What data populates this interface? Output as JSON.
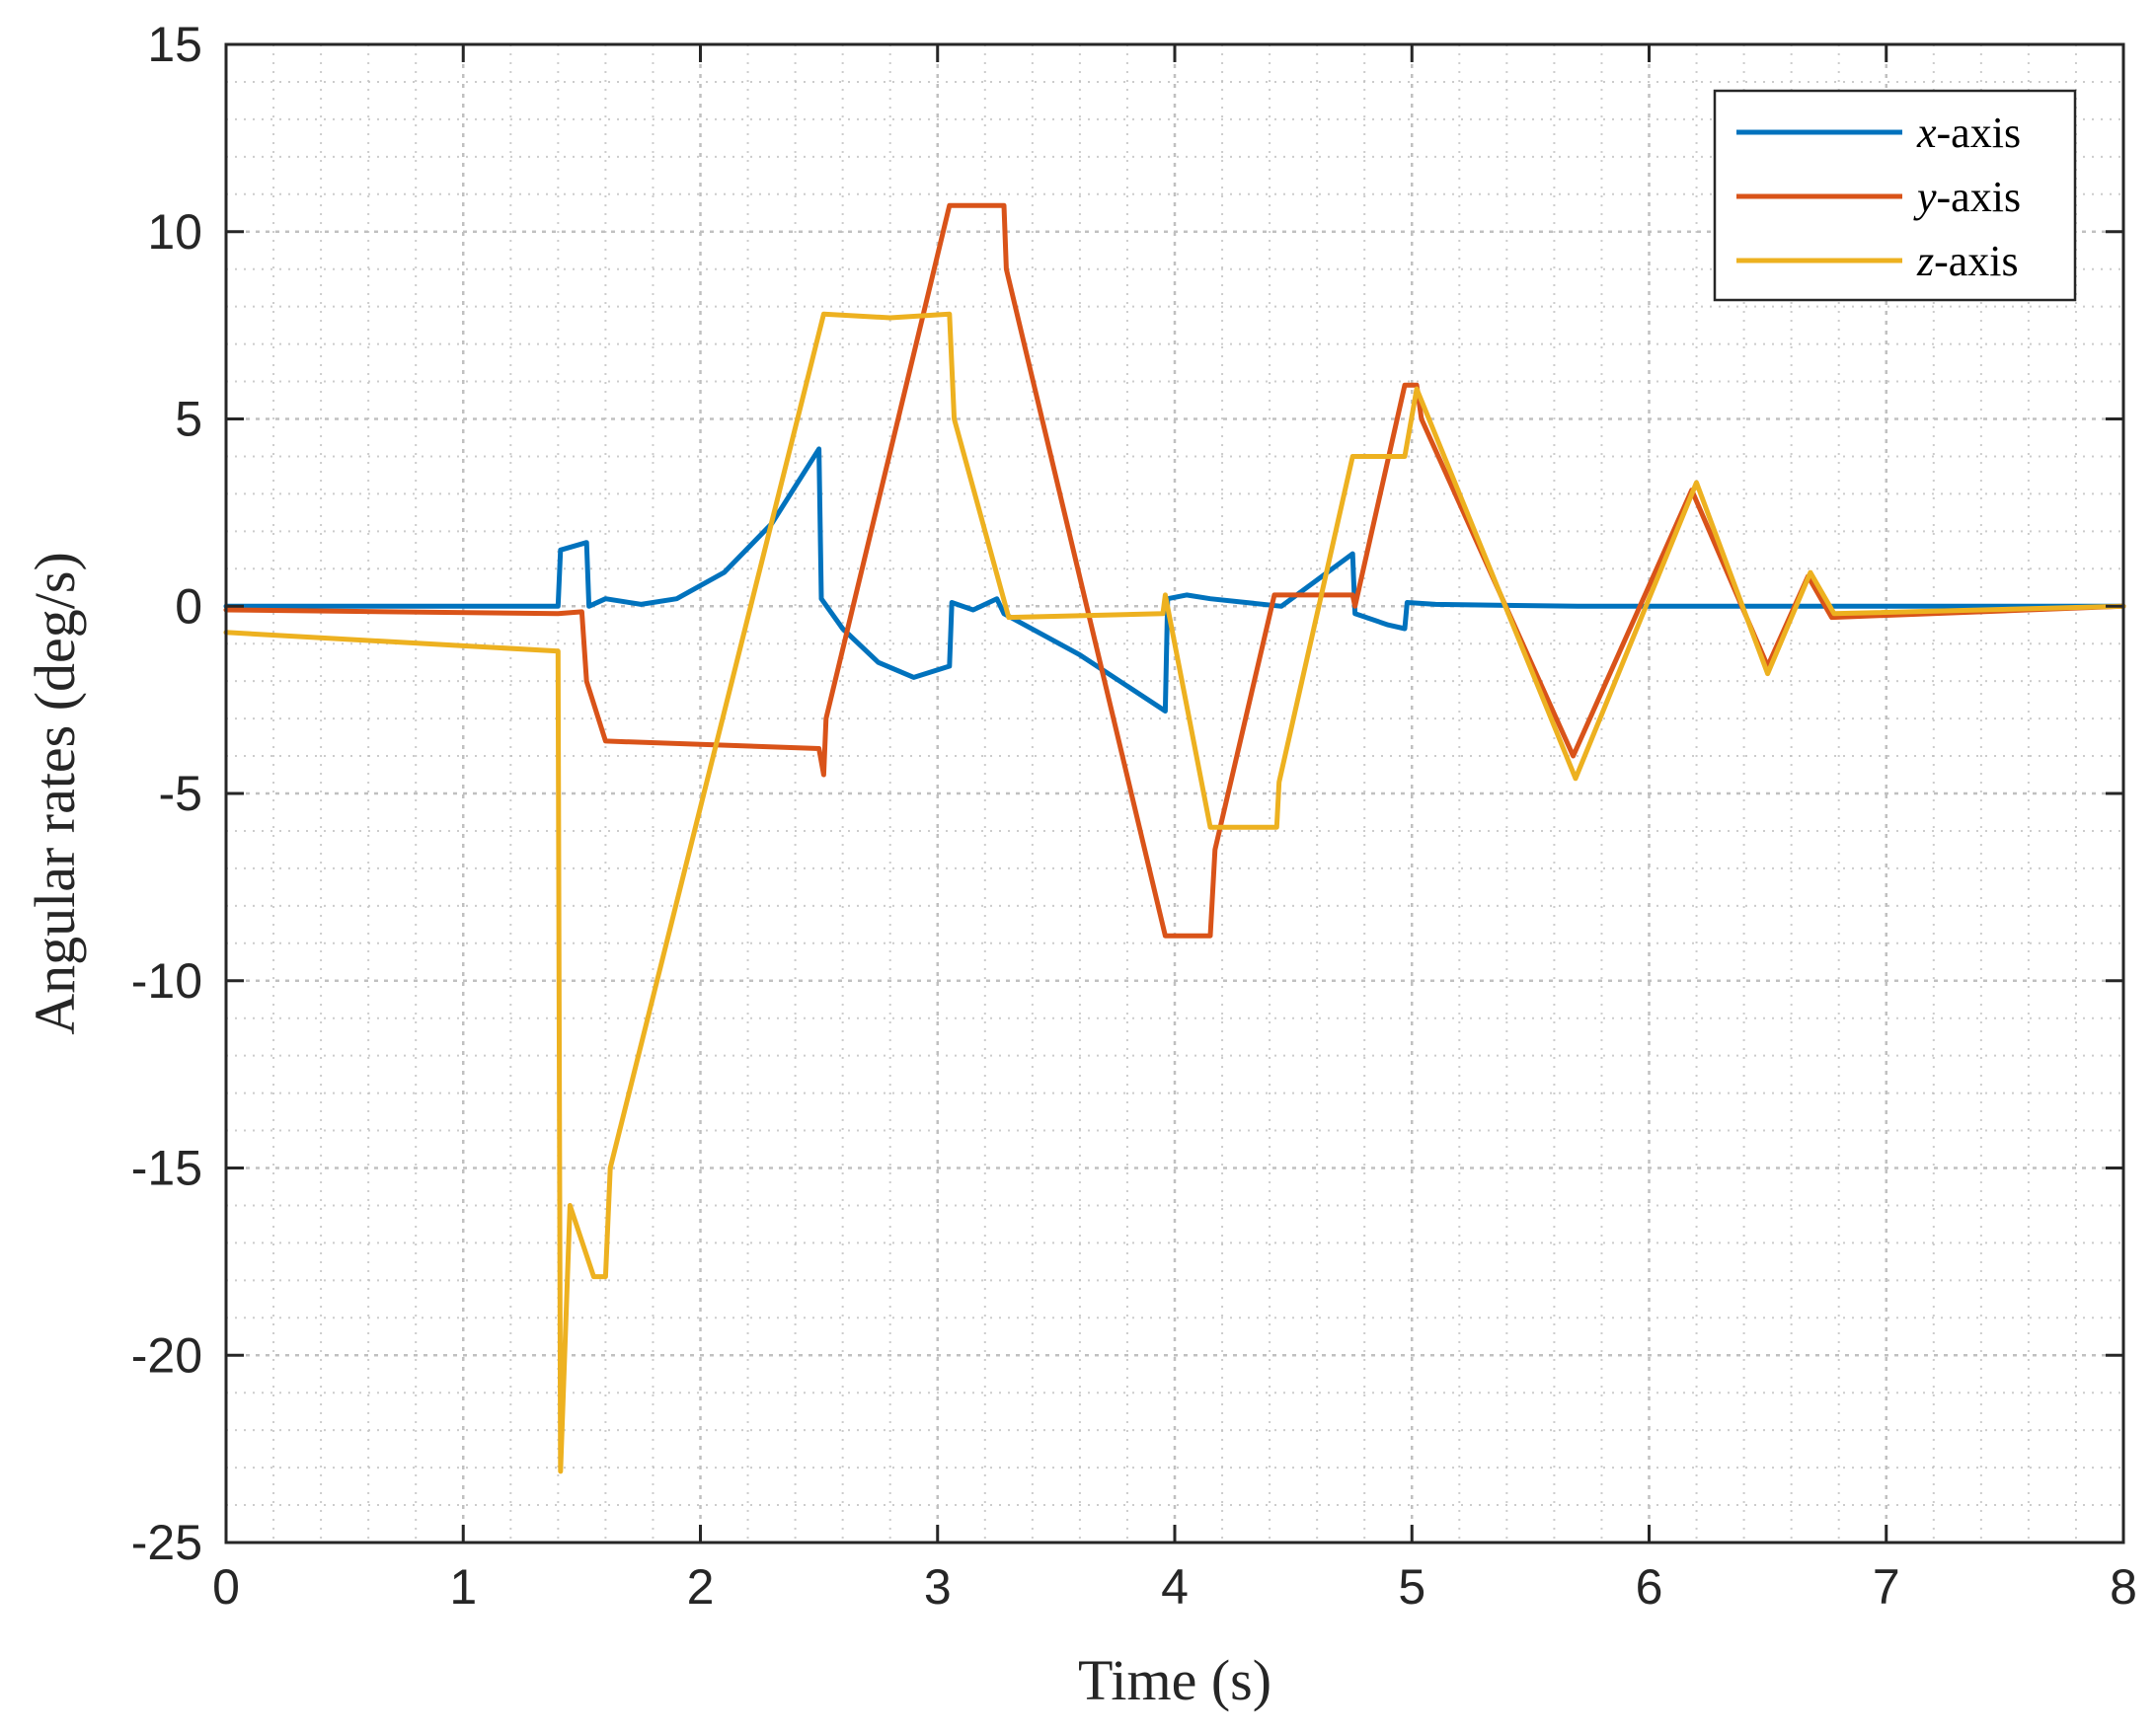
{
  "chart_data": {
    "type": "line",
    "title": "",
    "xlabel": "Time (s)",
    "ylabel": "Angular rates (deg/s)",
    "xlim": [
      0,
      8
    ],
    "ylim": [
      -25,
      15
    ],
    "xticks": [
      0,
      1,
      2,
      3,
      4,
      5,
      6,
      7,
      8
    ],
    "yticks": [
      -25,
      -20,
      -15,
      -10,
      -5,
      0,
      5,
      10,
      15
    ],
    "grid": "on (major and minor, dotted)",
    "legend_position": "top-right",
    "legend": [
      {
        "var": "x",
        "suffix": "-axis"
      },
      {
        "var": "y",
        "suffix": "-axis"
      },
      {
        "var": "z",
        "suffix": "-axis"
      }
    ],
    "colors": {
      "x": "#0072BD",
      "y": "#D95319",
      "z": "#EDB120",
      "axes": "#262626",
      "grid": "#C0C0C0"
    },
    "series": [
      {
        "name": "x-axis",
        "color": "#0072BD",
        "points": [
          [
            0,
            0
          ],
          [
            1.4,
            0
          ],
          [
            1.41,
            1.5
          ],
          [
            1.52,
            1.7
          ],
          [
            1.53,
            0
          ],
          [
            1.6,
            0.2
          ],
          [
            1.75,
            0.05
          ],
          [
            1.9,
            0.2
          ],
          [
            2.1,
            0.9
          ],
          [
            2.3,
            2.2
          ],
          [
            2.5,
            4.2
          ],
          [
            2.51,
            0.2
          ],
          [
            2.6,
            -0.6
          ],
          [
            2.75,
            -1.5
          ],
          [
            2.9,
            -1.9
          ],
          [
            3.05,
            -1.6
          ],
          [
            3.06,
            0.1
          ],
          [
            3.15,
            -0.1
          ],
          [
            3.25,
            0.2
          ],
          [
            3.28,
            -0.2
          ],
          [
            3.6,
            -1.3
          ],
          [
            3.96,
            -2.8
          ],
          [
            3.97,
            0.2
          ],
          [
            4.05,
            0.3
          ],
          [
            4.15,
            0.2
          ],
          [
            4.3,
            0.1
          ],
          [
            4.45,
            0.0
          ],
          [
            4.6,
            0.7
          ],
          [
            4.75,
            1.4
          ],
          [
            4.76,
            -0.2
          ],
          [
            4.9,
            -0.5
          ],
          [
            4.97,
            -0.6
          ],
          [
            4.98,
            0.1
          ],
          [
            5.1,
            0.05
          ],
          [
            5.7,
            0.0
          ],
          [
            6.5,
            0.0
          ],
          [
            6.8,
            0.0
          ],
          [
            7.0,
            0.0
          ],
          [
            8,
            0
          ]
        ]
      },
      {
        "name": "y-axis",
        "color": "#D95319",
        "points": [
          [
            0,
            -0.1
          ],
          [
            1.4,
            -0.2
          ],
          [
            1.5,
            -0.15
          ],
          [
            1.52,
            -2.0
          ],
          [
            1.6,
            -3.6
          ],
          [
            2.5,
            -3.8
          ],
          [
            2.52,
            -4.5
          ],
          [
            2.53,
            -3.0
          ],
          [
            3.05,
            10.7
          ],
          [
            3.28,
            10.7
          ],
          [
            3.29,
            9.0
          ],
          [
            3.96,
            -8.8
          ],
          [
            4.15,
            -8.8
          ],
          [
            4.17,
            -6.5
          ],
          [
            4.42,
            0.3
          ],
          [
            4.75,
            0.3
          ],
          [
            4.76,
            0.0
          ],
          [
            4.97,
            5.9
          ],
          [
            5.02,
            5.9
          ],
          [
            5.04,
            5.0
          ],
          [
            5.68,
            -4.0
          ],
          [
            6.18,
            3.1
          ],
          [
            6.5,
            -1.6
          ],
          [
            6.67,
            0.8
          ],
          [
            6.77,
            -0.3
          ],
          [
            8,
            0
          ]
        ]
      },
      {
        "name": "z-axis",
        "color": "#EDB120",
        "points": [
          [
            0,
            -0.7
          ],
          [
            1.4,
            -1.2
          ],
          [
            1.41,
            -23.1
          ],
          [
            1.45,
            -16.0
          ],
          [
            1.55,
            -17.9
          ],
          [
            1.6,
            -17.9
          ],
          [
            1.62,
            -15.0
          ],
          [
            2.52,
            7.8
          ],
          [
            2.8,
            7.7
          ],
          [
            3.05,
            7.8
          ],
          [
            3.07,
            5.0
          ],
          [
            3.3,
            -0.3
          ],
          [
            3.95,
            -0.2
          ],
          [
            3.96,
            0.3
          ],
          [
            4.15,
            -5.9
          ],
          [
            4.43,
            -5.9
          ],
          [
            4.44,
            -4.7
          ],
          [
            4.75,
            4.0
          ],
          [
            4.97,
            4.0
          ],
          [
            5.02,
            5.8
          ],
          [
            5.69,
            -4.6
          ],
          [
            6.2,
            3.3
          ],
          [
            6.5,
            -1.8
          ],
          [
            6.68,
            0.9
          ],
          [
            6.78,
            -0.2
          ],
          [
            8,
            0
          ]
        ]
      }
    ]
  }
}
